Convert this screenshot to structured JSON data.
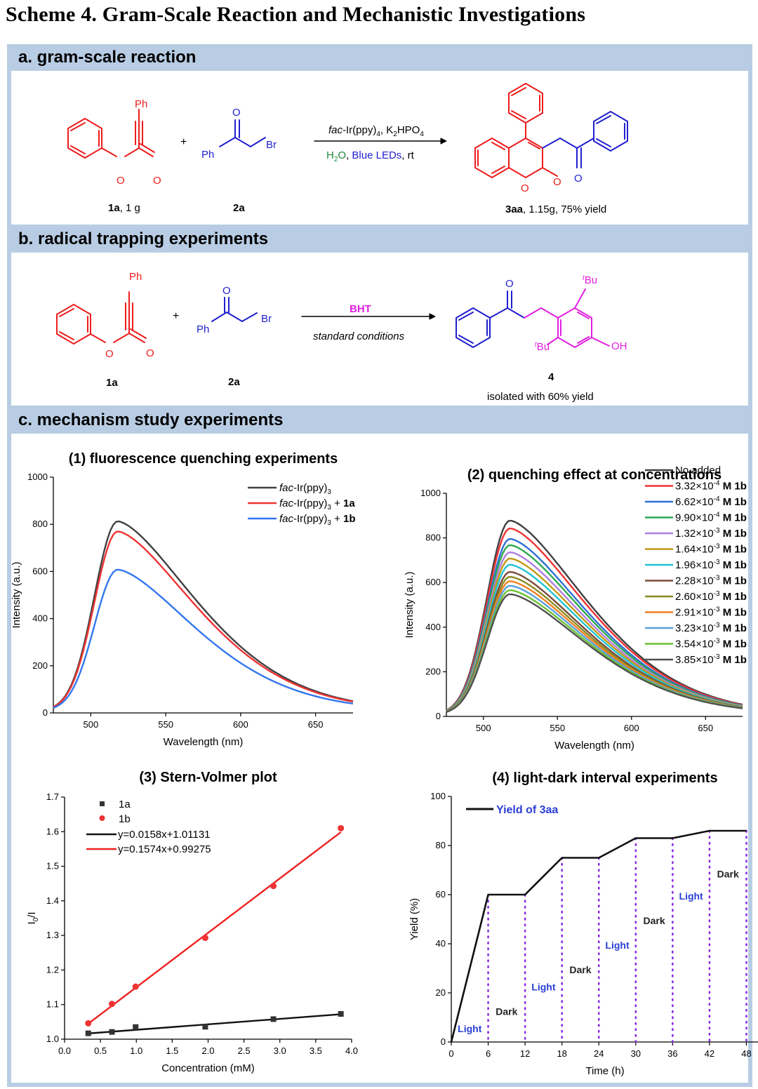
{
  "scheme_title": "Scheme 4. Gram-Scale Reaction and Mechanistic Investigations",
  "colors": {
    "frame": "#b8cde4",
    "red": "#ee1c1c",
    "blue": "#1f1fd0",
    "magenta": "#e020e0",
    "green": "#1f8a3a",
    "purple": "#8a2be2"
  },
  "section_a": {
    "header": "a. gram-scale reaction",
    "ph_label": "Ph",
    "o_label": "O",
    "br_label": "Br",
    "label_1a_bold": "1a",
    "label_1a_rest": ", 1 g",
    "label_2a": "2a",
    "plus": "+",
    "conditions_top_italic": "fac",
    "conditions_top_rest": "-Ir(ppy)",
    "conditions_top_sub4": "4",
    "conditions_top_k": ", K",
    "conditions_top_sub2": "2",
    "conditions_top_hpo": "HPO",
    "conditions_bottom_h": "H",
    "conditions_bottom_sub": "2",
    "conditions_bottom_o": "O",
    "conditions_bottom_sep": ", ",
    "conditions_bottom_leds": "Blue LEDs",
    "conditions_bottom_rt": ", rt",
    "product_bold": "3aa",
    "product_rest": ", 1.15g, 75% yield"
  },
  "section_b": {
    "header": "b. radical trapping experiments",
    "ph_label": "Ph",
    "o_label": "O",
    "br_label": "Br",
    "label_1a": "1a",
    "label_2a": "2a",
    "plus": "+",
    "reagent": "BHT",
    "conditions": "standard conditions",
    "tbu_t": "t",
    "tbu_bu": "Bu",
    "oh": "OH",
    "product_label": "4",
    "product_yield": "isolated with 60% yield"
  },
  "section_c": {
    "header": "c. mechanism study experiments"
  },
  "chart_data": [
    {
      "type": "line",
      "title": "(1) fluorescence quenching experiments",
      "xlabel": "Wavelength (nm)",
      "ylabel": "Intensity (a.u.)",
      "xlim": [
        475,
        675
      ],
      "ylim": [
        0,
        1000
      ],
      "xticks": [
        "500",
        "550",
        "600",
        "650"
      ],
      "yticks": [
        "0",
        "200",
        "400",
        "600",
        "800",
        "1000"
      ],
      "legend_position": "top-right",
      "series": [
        {
          "name_italic": "fac",
          "name_rest": "-Ir(ppy)",
          "name_sub": "3",
          "name_suffix": "",
          "color": "#404040",
          "peak": 805
        },
        {
          "name_italic": "fac",
          "name_rest": "-Ir(ppy)",
          "name_sub": "3",
          "name_suffix": " + 1a",
          "color": "#ee3333",
          "peak": 762
        },
        {
          "name_italic": "fac",
          "name_rest": "-Ir(ppy)",
          "name_sub": "3",
          "name_suffix": " + 1b",
          "color": "#3377ee",
          "peak": 600
        }
      ]
    },
    {
      "type": "line",
      "title": "(2) quenching effect at concentrations",
      "xlabel": "Wavelength (nm)",
      "ylabel": "Intensity (a.u.)",
      "xlim": [
        475,
        675
      ],
      "ylim": [
        0,
        1000
      ],
      "xticks": [
        "500",
        "550",
        "600",
        "650"
      ],
      "yticks": [
        "0",
        "200",
        "400",
        "600",
        "800",
        "1000"
      ],
      "legend_position": "top-right",
      "series": [
        {
          "name": "No added",
          "mant": "",
          "exp": "",
          "suffix": "",
          "color": "#404040",
          "peak": 870
        },
        {
          "name": "",
          "mant": "3.32×10",
          "exp": "-4",
          "suffix": " M 1b",
          "color": "#ee3333",
          "peak": 835
        },
        {
          "name": "",
          "mant": "6.62×10",
          "exp": "-4",
          "suffix": " M 1b",
          "color": "#2f6fd6",
          "peak": 788
        },
        {
          "name": "",
          "mant": "9.90×10",
          "exp": "-4",
          "suffix": " M 1b",
          "color": "#2fa84f",
          "peak": 760
        },
        {
          "name": "",
          "mant": "1.32×10",
          "exp": "-3",
          "suffix": " M 1b",
          "color": "#b07ee0",
          "peak": 728
        },
        {
          "name": "",
          "mant": "1.64×10",
          "exp": "-3",
          "suffix": " M 1b",
          "color": "#c09a10",
          "peak": 700
        },
        {
          "name": "",
          "mant": "1.96×10",
          "exp": "-3",
          "suffix": " M 1b",
          "color": "#22c2d2",
          "peak": 672
        },
        {
          "name": "",
          "mant": "2.28×10",
          "exp": "-3",
          "suffix": " M 1b",
          "color": "#7a4a3a",
          "peak": 640
        },
        {
          "name": "",
          "mant": "2.60×10",
          "exp": "-3",
          "suffix": " M 1b",
          "color": "#8a8a20",
          "peak": 618
        },
        {
          "name": "",
          "mant": "2.91×10",
          "exp": "-3",
          "suffix": " M 1b",
          "color": "#f08020",
          "peak": 598
        },
        {
          "name": "",
          "mant": "3.23×10",
          "exp": "-3",
          "suffix": " M 1b",
          "color": "#5aa0d8",
          "peak": 578
        },
        {
          "name": "",
          "mant": "3.54×10",
          "exp": "-3",
          "suffix": " M 1b",
          "color": "#6cc030",
          "peak": 558
        },
        {
          "name": "",
          "mant": "3.85×10",
          "exp": "-3",
          "suffix": " M 1b",
          "color": "#505050",
          "peak": 540
        }
      ]
    },
    {
      "type": "scatter",
      "title": "(3) Stern-Volmer plot",
      "xlabel": "Concentration (mM)",
      "ylabel_main": "I",
      "ylabel_sub": "0",
      "ylabel_end": "/I",
      "xlim": [
        0,
        4.0
      ],
      "ylim": [
        1.0,
        1.7
      ],
      "xticks": [
        "0.0",
        "0.5",
        "1.0",
        "1.5",
        "2.0",
        "2.5",
        "3.0",
        "3.5",
        "4.0"
      ],
      "yticks": [
        "1.0",
        "1.1",
        "1.2",
        "1.3",
        "1.4",
        "1.5",
        "1.6",
        "1.7"
      ],
      "legend_position": "top-left",
      "series": [
        {
          "name": "1a",
          "marker": "square",
          "color": "#333333",
          "x": [
            0.33,
            0.66,
            0.99,
            1.96,
            2.91,
            3.85
          ],
          "y": [
            1.017,
            1.021,
            1.035,
            1.036,
            1.058,
            1.073
          ]
        },
        {
          "name": "1b",
          "marker": "circle",
          "color": "#ee3333",
          "x": [
            0.33,
            0.66,
            0.99,
            1.96,
            2.91,
            3.85
          ],
          "y": [
            1.046,
            1.102,
            1.152,
            1.293,
            1.443,
            1.61
          ]
        }
      ],
      "fits": [
        {
          "label": "y=0.0158x+1.01131",
          "slope": 0.0158,
          "intercept": 1.01131,
          "color": "#111111",
          "x_range": [
            0.33,
            3.85
          ]
        },
        {
          "label": "y=0.1574x+0.99275",
          "slope": 0.1574,
          "intercept": 0.99275,
          "color": "#ee2222",
          "x_range": [
            0.33,
            3.85
          ]
        }
      ]
    },
    {
      "type": "line",
      "title": "(4) light-dark interval experiments",
      "xlabel": "Time (h)",
      "ylabel": "Yield (%)",
      "xlim": [
        0,
        50
      ],
      "ylim": [
        0,
        100
      ],
      "xticks": [
        "0",
        "6",
        "12",
        "18",
        "24",
        "30",
        "36",
        "42",
        "48"
      ],
      "yticks": [
        "0",
        "20",
        "40",
        "60",
        "80",
        "100"
      ],
      "legend_position": "top-left",
      "series": [
        {
          "name": "Yield of 3aa",
          "color": "#111111",
          "x": [
            0,
            6,
            12,
            18,
            24,
            30,
            36,
            42,
            48
          ],
          "y": [
            0,
            60,
            60,
            75,
            75,
            83,
            83,
            86,
            86
          ]
        }
      ],
      "intervals": [
        {
          "label": "Light",
          "x": 3,
          "y": 4,
          "kind": "light"
        },
        {
          "label": "Dark",
          "x": 9,
          "y": 11,
          "kind": "dark"
        },
        {
          "label": "Light",
          "x": 15,
          "y": 21,
          "kind": "light"
        },
        {
          "label": "Dark",
          "x": 21,
          "y": 28,
          "kind": "dark"
        },
        {
          "label": "Light",
          "x": 27,
          "y": 38,
          "kind": "light"
        },
        {
          "label": "Dark",
          "x": 33,
          "y": 48,
          "kind": "dark"
        },
        {
          "label": "Light",
          "x": 39,
          "y": 58,
          "kind": "light"
        },
        {
          "label": "Dark",
          "x": 45,
          "y": 67,
          "kind": "dark"
        }
      ],
      "dividers": [
        6,
        12,
        18,
        24,
        30,
        36,
        42,
        48
      ]
    }
  ]
}
